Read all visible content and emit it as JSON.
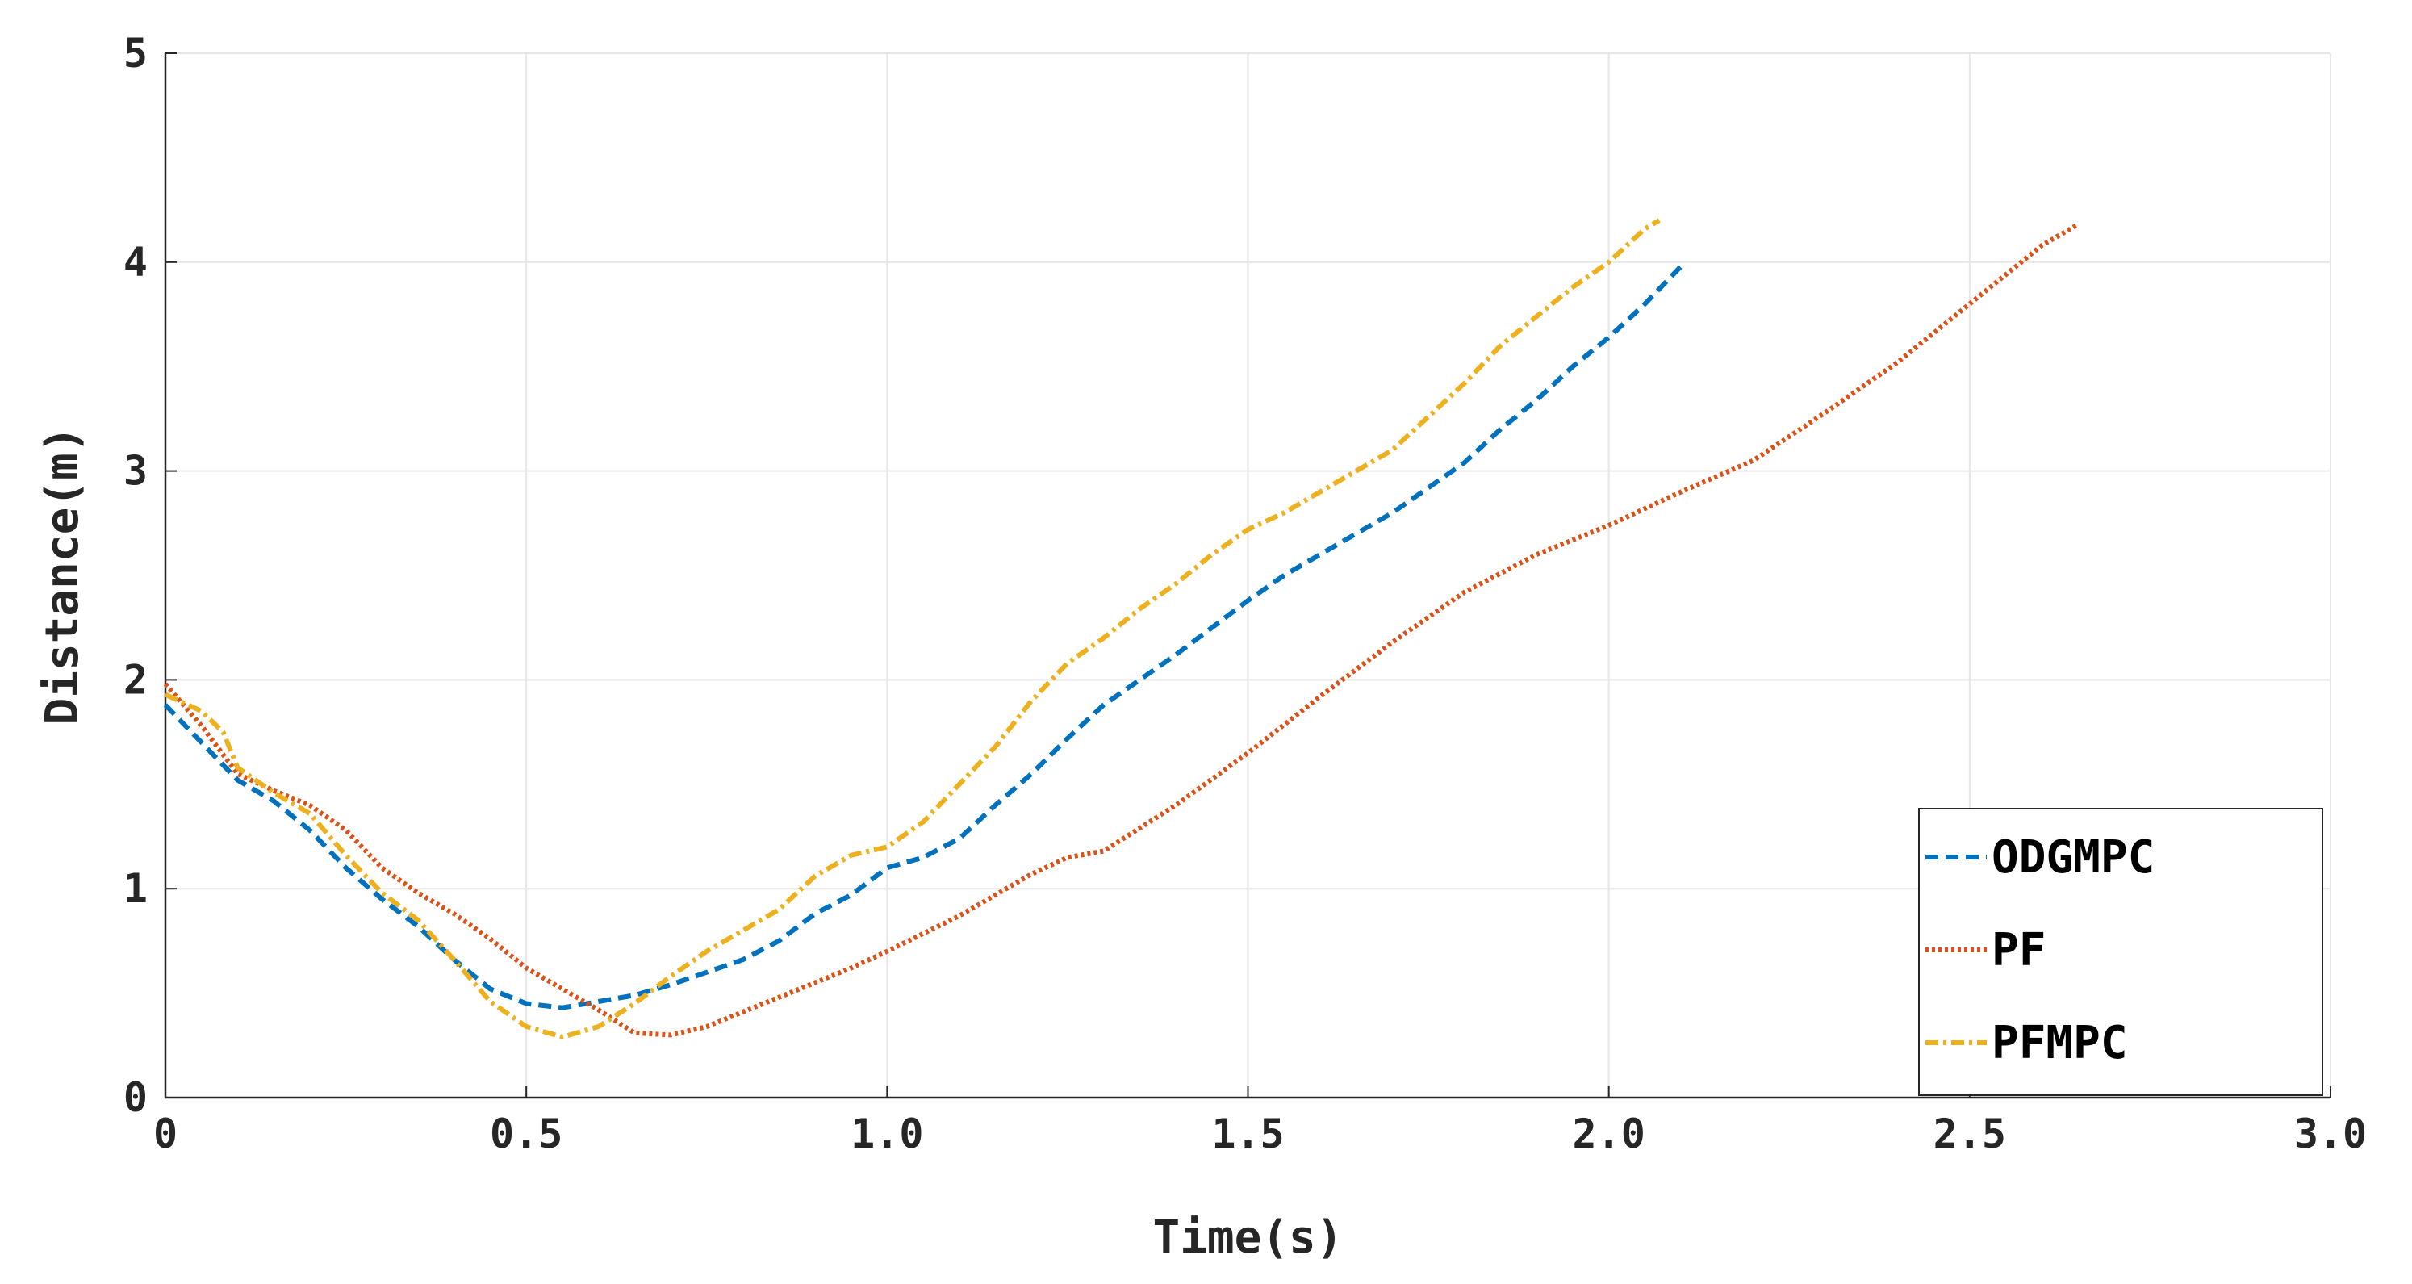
{
  "chart_data": {
    "type": "line",
    "title": "",
    "xlabel": "Time(s)",
    "ylabel": "Distance(m)",
    "xlim": [
      0,
      3.0
    ],
    "ylim": [
      0,
      5
    ],
    "xticks": [
      "0",
      "0.5",
      "1.0",
      "1.5",
      "2.0",
      "2.5",
      "3.0"
    ],
    "yticks": [
      "0",
      "1",
      "2",
      "3",
      "4",
      "5"
    ],
    "grid": true,
    "legend_position": "bottom-right",
    "series": [
      {
        "name": "ODGMPC",
        "color": "#0072BD",
        "style": "dashed",
        "x": [
          0,
          0.05,
          0.1,
          0.15,
          0.2,
          0.25,
          0.3,
          0.35,
          0.4,
          0.45,
          0.5,
          0.55,
          0.6,
          0.65,
          0.7,
          0.75,
          0.8,
          0.85,
          0.9,
          0.95,
          1.0,
          1.05,
          1.1,
          1.15,
          1.2,
          1.25,
          1.3,
          1.35,
          1.4,
          1.45,
          1.5,
          1.55,
          1.6,
          1.65,
          1.7,
          1.75,
          1.8,
          1.85,
          1.9,
          1.95,
          2.0,
          2.05,
          2.1
        ],
        "y": [
          1.88,
          1.7,
          1.52,
          1.42,
          1.28,
          1.1,
          0.95,
          0.82,
          0.66,
          0.52,
          0.45,
          0.43,
          0.46,
          0.49,
          0.54,
          0.6,
          0.66,
          0.75,
          0.88,
          0.97,
          1.1,
          1.15,
          1.24,
          1.4,
          1.55,
          1.72,
          1.88,
          2.0,
          2.12,
          2.25,
          2.38,
          2.5,
          2.6,
          2.7,
          2.8,
          2.92,
          3.04,
          3.2,
          3.34,
          3.5,
          3.64,
          3.8,
          3.98
        ]
      },
      {
        "name": "PF",
        "color": "#D95319",
        "style": "dotted",
        "x": [
          0,
          0.05,
          0.1,
          0.15,
          0.2,
          0.25,
          0.3,
          0.35,
          0.4,
          0.45,
          0.5,
          0.55,
          0.6,
          0.65,
          0.7,
          0.75,
          0.8,
          0.85,
          0.9,
          0.95,
          1.0,
          1.1,
          1.2,
          1.25,
          1.3,
          1.4,
          1.5,
          1.6,
          1.7,
          1.8,
          1.9,
          2.0,
          2.1,
          2.2,
          2.3,
          2.4,
          2.5,
          2.6,
          2.65
        ],
        "y": [
          1.98,
          1.78,
          1.55,
          1.47,
          1.4,
          1.28,
          1.1,
          0.98,
          0.88,
          0.76,
          0.62,
          0.52,
          0.42,
          0.31,
          0.3,
          0.34,
          0.41,
          0.48,
          0.55,
          0.62,
          0.7,
          0.87,
          1.07,
          1.15,
          1.18,
          1.4,
          1.65,
          1.92,
          2.18,
          2.42,
          2.6,
          2.74,
          2.9,
          3.05,
          3.28,
          3.52,
          3.8,
          4.08,
          4.18
        ]
      },
      {
        "name": "PFMPC",
        "color": "#EDB120",
        "style": "dashdot",
        "x": [
          0,
          0.05,
          0.08,
          0.1,
          0.15,
          0.2,
          0.25,
          0.3,
          0.35,
          0.4,
          0.45,
          0.5,
          0.55,
          0.6,
          0.65,
          0.7,
          0.75,
          0.8,
          0.85,
          0.9,
          0.95,
          1.0,
          1.05,
          1.1,
          1.15,
          1.2,
          1.25,
          1.3,
          1.35,
          1.4,
          1.45,
          1.5,
          1.55,
          1.6,
          1.65,
          1.7,
          1.75,
          1.8,
          1.85,
          1.9,
          1.95,
          2.0,
          2.05,
          2.07
        ],
        "y": [
          1.93,
          1.85,
          1.75,
          1.58,
          1.46,
          1.36,
          1.16,
          0.98,
          0.85,
          0.66,
          0.46,
          0.34,
          0.29,
          0.34,
          0.45,
          0.58,
          0.7,
          0.8,
          0.9,
          1.06,
          1.16,
          1.2,
          1.32,
          1.5,
          1.68,
          1.9,
          2.08,
          2.2,
          2.34,
          2.46,
          2.6,
          2.72,
          2.8,
          2.9,
          3.0,
          3.1,
          3.26,
          3.42,
          3.6,
          3.74,
          3.88,
          4.0,
          4.16,
          4.2
        ]
      }
    ]
  }
}
